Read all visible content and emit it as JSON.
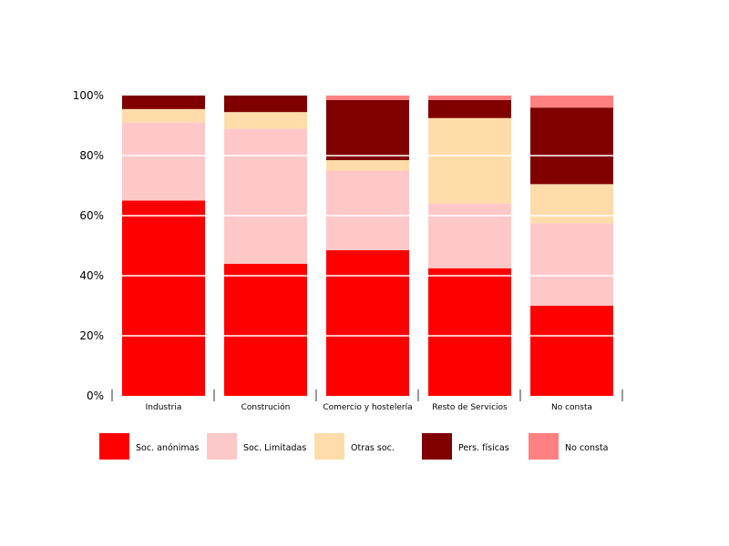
{
  "chart_data": {
    "type": "bar",
    "stacked": true,
    "categories": [
      "Industria",
      "Construción",
      "Comercio y hostelería",
      "Resto de Servicios",
      "No consta"
    ],
    "series": [
      {
        "name": "Soc. anónimas",
        "color": "#ff0000",
        "values": [
          65,
          44,
          48.5,
          42.5,
          30
        ]
      },
      {
        "name": "Soc. Limitadas",
        "color": "#ffc8c8",
        "values": [
          26,
          45,
          26.5,
          21.5,
          27.5
        ]
      },
      {
        "name": "Otras soc.",
        "color": "#ffdcaa",
        "values": [
          4.5,
          5.5,
          3.5,
          28.5,
          13
        ]
      },
      {
        "name": "Pers. físicas",
        "color": "#800000",
        "values": [
          4.5,
          5.5,
          20,
          6,
          25.5
        ]
      },
      {
        "name": "No consta",
        "color": "#ff8080",
        "values": [
          0,
          0,
          1.5,
          1.5,
          4
        ]
      }
    ],
    "ylim": [
      0,
      100
    ],
    "y_ticks": [
      "0%",
      "20%",
      "40%",
      "60%",
      "80%",
      "100%"
    ],
    "grid": true,
    "legend_position": "bottom"
  }
}
